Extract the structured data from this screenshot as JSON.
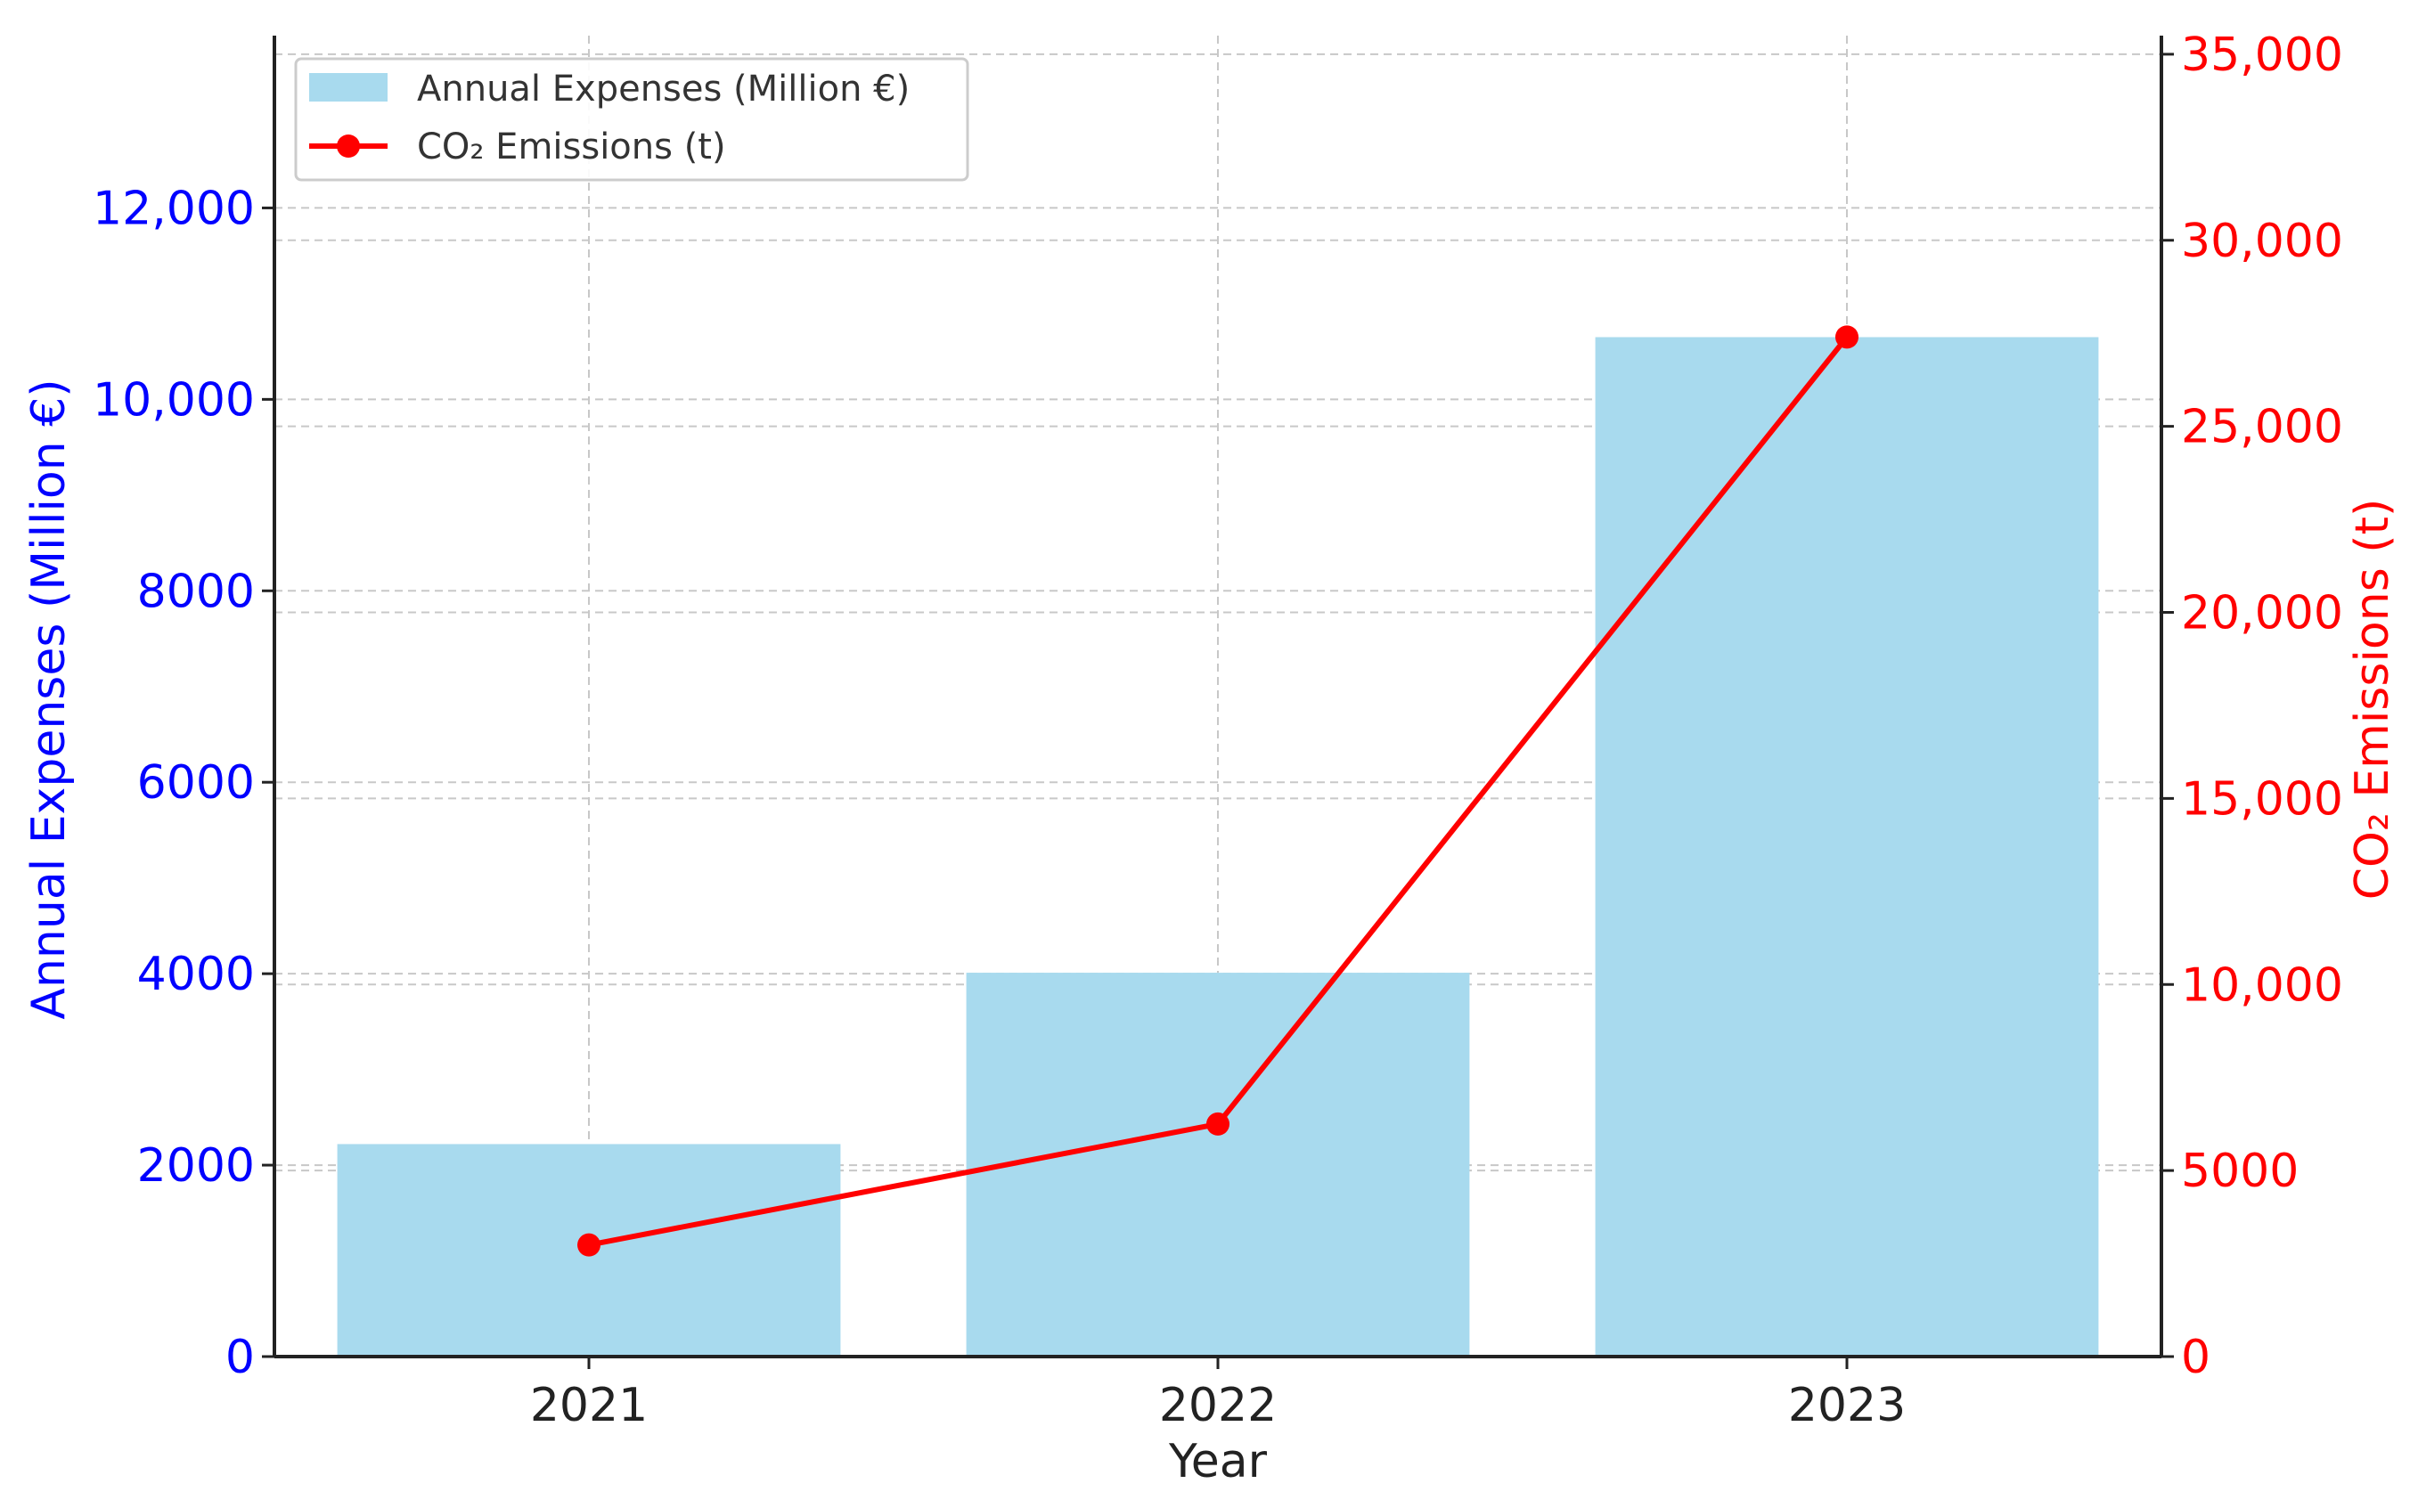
{
  "chart_data": {
    "type": "bar",
    "categories": [
      "2021",
      "2022",
      "2023"
    ],
    "xlabel": "Year",
    "y_left": {
      "label": "Annual Expenses (Million €)",
      "lim": [
        0,
        13800
      ],
      "ticks": [
        0,
        2000,
        4000,
        6000,
        8000,
        10000,
        12000
      ],
      "tick_labels": [
        "0",
        "2000",
        "4000",
        "6000",
        "8000",
        "10,000",
        "12,000"
      ],
      "color": "#0000ff"
    },
    "y_right": {
      "label": "CO₂ Emissions (t)",
      "lim": [
        0,
        35500
      ],
      "ticks": [
        0,
        5000,
        10000,
        15000,
        20000,
        25000,
        30000,
        35000
      ],
      "tick_labels": [
        "0",
        "5000",
        "10,000",
        "15,000",
        "20,000",
        "25,000",
        "30,000",
        "35,000"
      ],
      "color": "#ff0000"
    },
    "series": [
      {
        "name": "Annual Expenses (Million €)",
        "type": "bar",
        "axis": "left",
        "color": "#a8daee",
        "values": [
          2220,
          4010,
          10650
        ]
      },
      {
        "name": "CO₂ Emissions (t)",
        "type": "line",
        "axis": "right",
        "color": "#ff0000",
        "marker": "circle",
        "values": [
          3000,
          6250,
          27400
        ]
      }
    ],
    "grid": true,
    "legend": "top-left"
  }
}
